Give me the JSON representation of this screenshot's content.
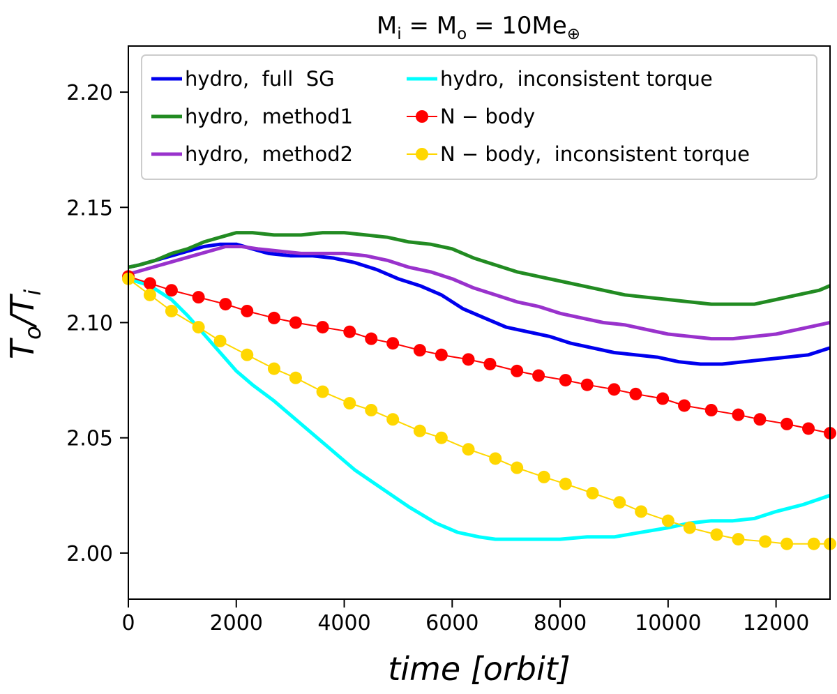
{
  "chart_data": {
    "type": "line",
    "title": "M_i = M_o = 10Me_⊕",
    "title_parts": {
      "m1": "M",
      "s1": "i",
      "eq1": " = M",
      "s2": "o",
      "eq2": " = 10Me",
      "s3": "⊕"
    },
    "xlabel": "time [orbit]",
    "ylabel_main": "T",
    "ylabel_sub1": "o",
    "ylabel_slash": "/T",
    "ylabel_sub2": "i",
    "xlim": [
      0,
      13000
    ],
    "ylim": [
      1.98,
      2.22
    ],
    "xticks": [
      0,
      2000,
      4000,
      6000,
      8000,
      10000,
      12000
    ],
    "xtick_labels": [
      "0",
      "2000",
      "4000",
      "6000",
      "8000",
      "10000",
      "12000"
    ],
    "yticks": [
      2.0,
      2.05,
      2.1,
      2.15,
      2.2
    ],
    "ytick_labels": [
      "2.00",
      "2.05",
      "2.10",
      "2.15",
      "2.20"
    ],
    "legend_position": "top",
    "series": [
      {
        "name": "hydro,  full  SG",
        "color": "#0000ee",
        "style": "line",
        "x": [
          0,
          200,
          500,
          800,
          1100,
          1400,
          1700,
          2000,
          2300,
          2600,
          3000,
          3400,
          3800,
          4200,
          4600,
          5000,
          5400,
          5800,
          6200,
          6600,
          7000,
          7400,
          7800,
          8200,
          8600,
          9000,
          9400,
          9800,
          10200,
          10600,
          11000,
          11400,
          11800,
          12200,
          12600,
          13000
        ],
        "y": [
          2.124,
          2.125,
          2.127,
          2.129,
          2.131,
          2.133,
          2.134,
          2.134,
          2.132,
          2.13,
          2.129,
          2.129,
          2.128,
          2.126,
          2.123,
          2.119,
          2.116,
          2.112,
          2.106,
          2.102,
          2.098,
          2.096,
          2.094,
          2.091,
          2.089,
          2.087,
          2.086,
          2.085,
          2.083,
          2.082,
          2.082,
          2.083,
          2.084,
          2.085,
          2.086,
          2.089
        ]
      },
      {
        "name": "hydro,  method1",
        "color": "#228b22",
        "style": "line",
        "x": [
          0,
          200,
          500,
          800,
          1100,
          1400,
          1700,
          2000,
          2300,
          2700,
          3200,
          3600,
          4000,
          4400,
          4800,
          5200,
          5600,
          6000,
          6400,
          6800,
          7200,
          7600,
          8000,
          8400,
          8800,
          9200,
          9600,
          10000,
          10400,
          10800,
          11200,
          11600,
          12000,
          12400,
          12800,
          13000
        ],
        "y": [
          2.124,
          2.125,
          2.127,
          2.13,
          2.132,
          2.135,
          2.137,
          2.139,
          2.139,
          2.138,
          2.138,
          2.139,
          2.139,
          2.138,
          2.137,
          2.135,
          2.134,
          2.132,
          2.128,
          2.125,
          2.122,
          2.12,
          2.118,
          2.116,
          2.114,
          2.112,
          2.111,
          2.11,
          2.109,
          2.108,
          2.108,
          2.108,
          2.11,
          2.112,
          2.114,
          2.116
        ]
      },
      {
        "name": "hydro,  method2",
        "color": "#9932cc",
        "style": "line",
        "x": [
          0,
          300,
          600,
          900,
          1200,
          1500,
          1800,
          2100,
          2400,
          2800,
          3200,
          3600,
          4000,
          4400,
          4800,
          5200,
          5600,
          6000,
          6400,
          6800,
          7200,
          7600,
          8000,
          8400,
          8800,
          9200,
          9600,
          10000,
          10400,
          10800,
          11200,
          11600,
          12000,
          12400,
          12800,
          13000
        ],
        "y": [
          2.121,
          2.123,
          2.125,
          2.127,
          2.129,
          2.131,
          2.133,
          2.133,
          2.132,
          2.131,
          2.13,
          2.13,
          2.13,
          2.129,
          2.127,
          2.124,
          2.122,
          2.119,
          2.115,
          2.112,
          2.109,
          2.107,
          2.104,
          2.102,
          2.1,
          2.099,
          2.097,
          2.095,
          2.094,
          2.093,
          2.093,
          2.094,
          2.095,
          2.097,
          2.099,
          2.1
        ]
      },
      {
        "name": "hydro,  inconsistent torque",
        "color": "#00ffff",
        "style": "line",
        "x": [
          0,
          400,
          800,
          1100,
          1400,
          1700,
          2000,
          2300,
          2700,
          3200,
          3700,
          4200,
          4700,
          5200,
          5700,
          6100,
          6500,
          6800,
          7000,
          7500,
          8000,
          8500,
          9000,
          9500,
          10000,
          10400,
          10800,
          11200,
          11600,
          12000,
          12500,
          13000
        ],
        "y": [
          2.119,
          2.116,
          2.11,
          2.103,
          2.095,
          2.087,
          2.079,
          2.073,
          2.066,
          2.056,
          2.046,
          2.036,
          2.028,
          2.02,
          2.013,
          2.009,
          2.007,
          2.006,
          2.006,
          2.006,
          2.006,
          2.007,
          2.007,
          2.009,
          2.011,
          2.013,
          2.014,
          2.014,
          2.015,
          2.018,
          2.021,
          2.025
        ]
      },
      {
        "name": "N − body",
        "color": "#ff0000",
        "style": "line-marker",
        "x": [
          0,
          400,
          800,
          1300,
          1800,
          2200,
          2700,
          3100,
          3600,
          4100,
          4500,
          4900,
          5400,
          5800,
          6300,
          6700,
          7200,
          7600,
          8100,
          8500,
          9000,
          9400,
          9900,
          10300,
          10800,
          11300,
          11700,
          12200,
          12600,
          13000
        ],
        "y": [
          2.12,
          2.117,
          2.114,
          2.111,
          2.108,
          2.105,
          2.102,
          2.1,
          2.098,
          2.096,
          2.093,
          2.091,
          2.088,
          2.086,
          2.084,
          2.082,
          2.079,
          2.077,
          2.075,
          2.073,
          2.071,
          2.069,
          2.067,
          2.064,
          2.062,
          2.06,
          2.058,
          2.056,
          2.054,
          2.052
        ]
      },
      {
        "name": "N − body,  inconsistent torque",
        "color": "#ffd700",
        "style": "line-marker",
        "x": [
          0,
          400,
          800,
          1300,
          1700,
          2200,
          2700,
          3100,
          3600,
          4100,
          4500,
          4900,
          5400,
          5800,
          6300,
          6800,
          7200,
          7700,
          8100,
          8600,
          9100,
          9500,
          10000,
          10400,
          10900,
          11300,
          11800,
          12200,
          12700,
          13000
        ],
        "y": [
          2.119,
          2.112,
          2.105,
          2.098,
          2.092,
          2.086,
          2.08,
          2.076,
          2.07,
          2.065,
          2.062,
          2.058,
          2.053,
          2.05,
          2.045,
          2.041,
          2.037,
          2.033,
          2.03,
          2.026,
          2.022,
          2.018,
          2.014,
          2.011,
          2.008,
          2.006,
          2.005,
          2.004,
          2.004,
          2.004
        ]
      }
    ]
  }
}
